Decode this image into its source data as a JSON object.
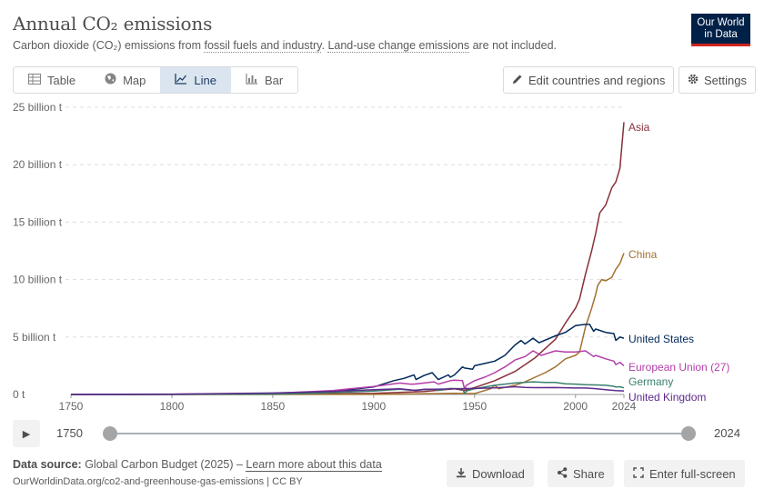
{
  "header": {
    "title": "Annual CO₂ emissions",
    "subtitle_prefix": "Carbon dioxide (CO₂) emissions from ",
    "subtitle_link1": "fossil fuels and industry",
    "subtitle_mid": ". ",
    "subtitle_link2": "Land-use change emissions",
    "subtitle_suffix": " are not included.",
    "logo_line1": "Our World",
    "logo_line2": "in Data"
  },
  "tabs": [
    {
      "label": "Table",
      "icon": "table-icon"
    },
    {
      "label": "Map",
      "icon": "globe-icon"
    },
    {
      "label": "Line",
      "icon": "line-chart-icon",
      "active": true
    },
    {
      "label": "Bar",
      "icon": "bar-chart-icon"
    }
  ],
  "toolbar": {
    "edit_label": "Edit countries and regions",
    "settings_label": "Settings"
  },
  "timeline": {
    "start_label": "1750",
    "end_label": "2024",
    "start_fraction": 0,
    "end_fraction": 1
  },
  "footer": {
    "source_label": "Data source:",
    "source_text": " Global Carbon Budget (2025) – ",
    "learn_more": "Learn more about this data",
    "url_text": "OurWorldinData.org/co2-and-greenhouse-gas-emissions | CC BY",
    "download_label": "Download",
    "share_label": "Share",
    "fullscreen_label": "Enter full-screen"
  },
  "colors": {
    "asia": "#883039",
    "china": "#a2712e",
    "united_states": "#00295b",
    "european_union": "#b33ea9",
    "germany": "#3a7f6d",
    "united_kingdom": "#5e2a8c",
    "active_tab": "#dbe5f0",
    "logo_bg": "#002147",
    "logo_accent": "#ce261e"
  },
  "chart_data": {
    "type": "line",
    "title": "Annual CO₂ emissions",
    "xlabel": "",
    "ylabel": "",
    "xlim": [
      1750,
      2024
    ],
    "ylim": [
      0,
      25000000000
    ],
    "x_ticks": [
      1750,
      1800,
      1850,
      1900,
      1950,
      2000,
      2024
    ],
    "y_ticks": [
      {
        "value": 0,
        "label": "0 t"
      },
      {
        "value": 5000000000,
        "label": "5 billion t"
      },
      {
        "value": 10000000000,
        "label": "10 billion t"
      },
      {
        "value": 15000000000,
        "label": "15 billion t"
      },
      {
        "value": 20000000000,
        "label": "20 billion t"
      },
      {
        "value": 25000000000,
        "label": "25 billion t"
      }
    ],
    "grid": "horizontal-dashed",
    "legend": "line-end-labels",
    "series": [
      {
        "name": "Asia",
        "color": "#883039",
        "x": [
          1750,
          1850,
          1900,
          1925,
          1940,
          1945,
          1950,
          1960,
          1970,
          1980,
          1990,
          1995,
          2000,
          2002,
          2005,
          2008,
          2010,
          2012,
          2015,
          2018,
          2020,
          2022,
          2024
        ],
        "y": [
          0,
          20000000,
          100000000,
          250000000,
          500000000,
          350000000,
          600000000,
          1200000000,
          2000000000,
          3200000000,
          4800000000,
          6200000000,
          7500000000,
          8300000000,
          10500000000,
          12500000000,
          14000000000,
          15800000000,
          16500000000,
          18000000000,
          18500000000,
          19700000000,
          23700000000
        ]
      },
      {
        "name": "China",
        "color": "#a2712e",
        "x": [
          1750,
          1900,
          1940,
          1950,
          1958,
          1960,
          1962,
          1970,
          1975,
          1980,
          1985,
          1990,
          1995,
          2000,
          2002,
          2005,
          2008,
          2010,
          2011,
          2013,
          2015,
          2018,
          2020,
          2022,
          2024
        ],
        "y": [
          0,
          10000000,
          100000000,
          80000000,
          500000000,
          800000000,
          500000000,
          800000000,
          1100000000,
          1500000000,
          1900000000,
          2400000000,
          3100000000,
          3400000000,
          3700000000,
          5900000000,
          7500000000,
          8700000000,
          9500000000,
          10000000000,
          9900000000,
          10200000000,
          10900000000,
          11400000000,
          12300000000
        ]
      },
      {
        "name": "United States",
        "color": "#00295b",
        "x": [
          1750,
          1800,
          1850,
          1870,
          1880,
          1900,
          1910,
          1915,
          1920,
          1921,
          1925,
          1929,
          1932,
          1937,
          1938,
          1940,
          1944,
          1945,
          1949,
          1950,
          1955,
          1960,
          1965,
          1970,
          1973,
          1975,
          1979,
          1982,
          1990,
          1995,
          2000,
          2005,
          2007,
          2009,
          2010,
          2015,
          2019,
          2020,
          2022,
          2024
        ],
        "y": [
          0,
          5000000,
          50000000,
          150000000,
          250000000,
          650000000,
          1200000000,
          1400000000,
          1700000000,
          1300000000,
          1650000000,
          1900000000,
          1300000000,
          1700000000,
          1500000000,
          1700000000,
          2400000000,
          2300000000,
          2200000000,
          2500000000,
          2700000000,
          2900000000,
          3400000000,
          4300000000,
          4700000000,
          4400000000,
          4900000000,
          4500000000,
          5100000000,
          5400000000,
          6000000000,
          6100000000,
          6100000000,
          5500000000,
          5700000000,
          5400000000,
          5300000000,
          4700000000,
          5000000000,
          4900000000
        ]
      },
      {
        "name": "European Union (27)",
        "color": "#b33ea9",
        "x": [
          1750,
          1800,
          1850,
          1870,
          1880,
          1900,
          1913,
          1918,
          1920,
          1930,
          1932,
          1938,
          1940,
          1944,
          1945,
          1946,
          1950,
          1955,
          1960,
          1965,
          1970,
          1975,
          1979,
          1983,
          1990,
          1995,
          2000,
          2005,
          2009,
          2010,
          2015,
          2019,
          2020,
          2022,
          2024
        ],
        "y": [
          0,
          20000000,
          100000000,
          250000000,
          350000000,
          700000000,
          1000000000,
          900000000,
          900000000,
          1100000000,
          900000000,
          1200000000,
          1250000000,
          1200000000,
          500000000,
          800000000,
          1200000000,
          1500000000,
          1900000000,
          2400000000,
          3000000000,
          3300000000,
          3800000000,
          3400000000,
          3800000000,
          3700000000,
          3700000000,
          3800000000,
          3300000000,
          3400000000,
          3100000000,
          2900000000,
          2600000000,
          2800000000,
          2500000000
        ]
      },
      {
        "name": "Germany",
        "color": "#3a7f6d",
        "x": [
          1750,
          1800,
          1850,
          1870,
          1900,
          1913,
          1918,
          1920,
          1930,
          1932,
          1938,
          1944,
          1945,
          1946,
          1950,
          1960,
          1970,
          1979,
          1985,
          1990,
          1995,
          2000,
          2005,
          2010,
          2015,
          2019,
          2020,
          2022,
          2024
        ],
        "y": [
          0,
          5000000,
          30000000,
          100000000,
          300000000,
          450000000,
          380000000,
          380000000,
          450000000,
          350000000,
          520000000,
          500000000,
          100000000,
          300000000,
          500000000,
          800000000,
          1000000000,
          1100000000,
          1050000000,
          1050000000,
          930000000,
          900000000,
          850000000,
          830000000,
          800000000,
          710000000,
          650000000,
          670000000,
          580000000
        ]
      },
      {
        "name": "United Kingdom",
        "color": "#5e2a8c",
        "x": [
          1750,
          1800,
          1850,
          1880,
          1900,
          1913,
          1921,
          1925,
          1930,
          1940,
          1950,
          1960,
          1970,
          1975,
          1980,
          1990,
          2000,
          2005,
          2010,
          2015,
          2020,
          2024
        ],
        "y": [
          9000000,
          30000000,
          130000000,
          270000000,
          420000000,
          500000000,
          350000000,
          450000000,
          450000000,
          500000000,
          520000000,
          580000000,
          670000000,
          620000000,
          590000000,
          600000000,
          560000000,
          560000000,
          510000000,
          420000000,
          330000000,
          310000000
        ]
      }
    ]
  }
}
